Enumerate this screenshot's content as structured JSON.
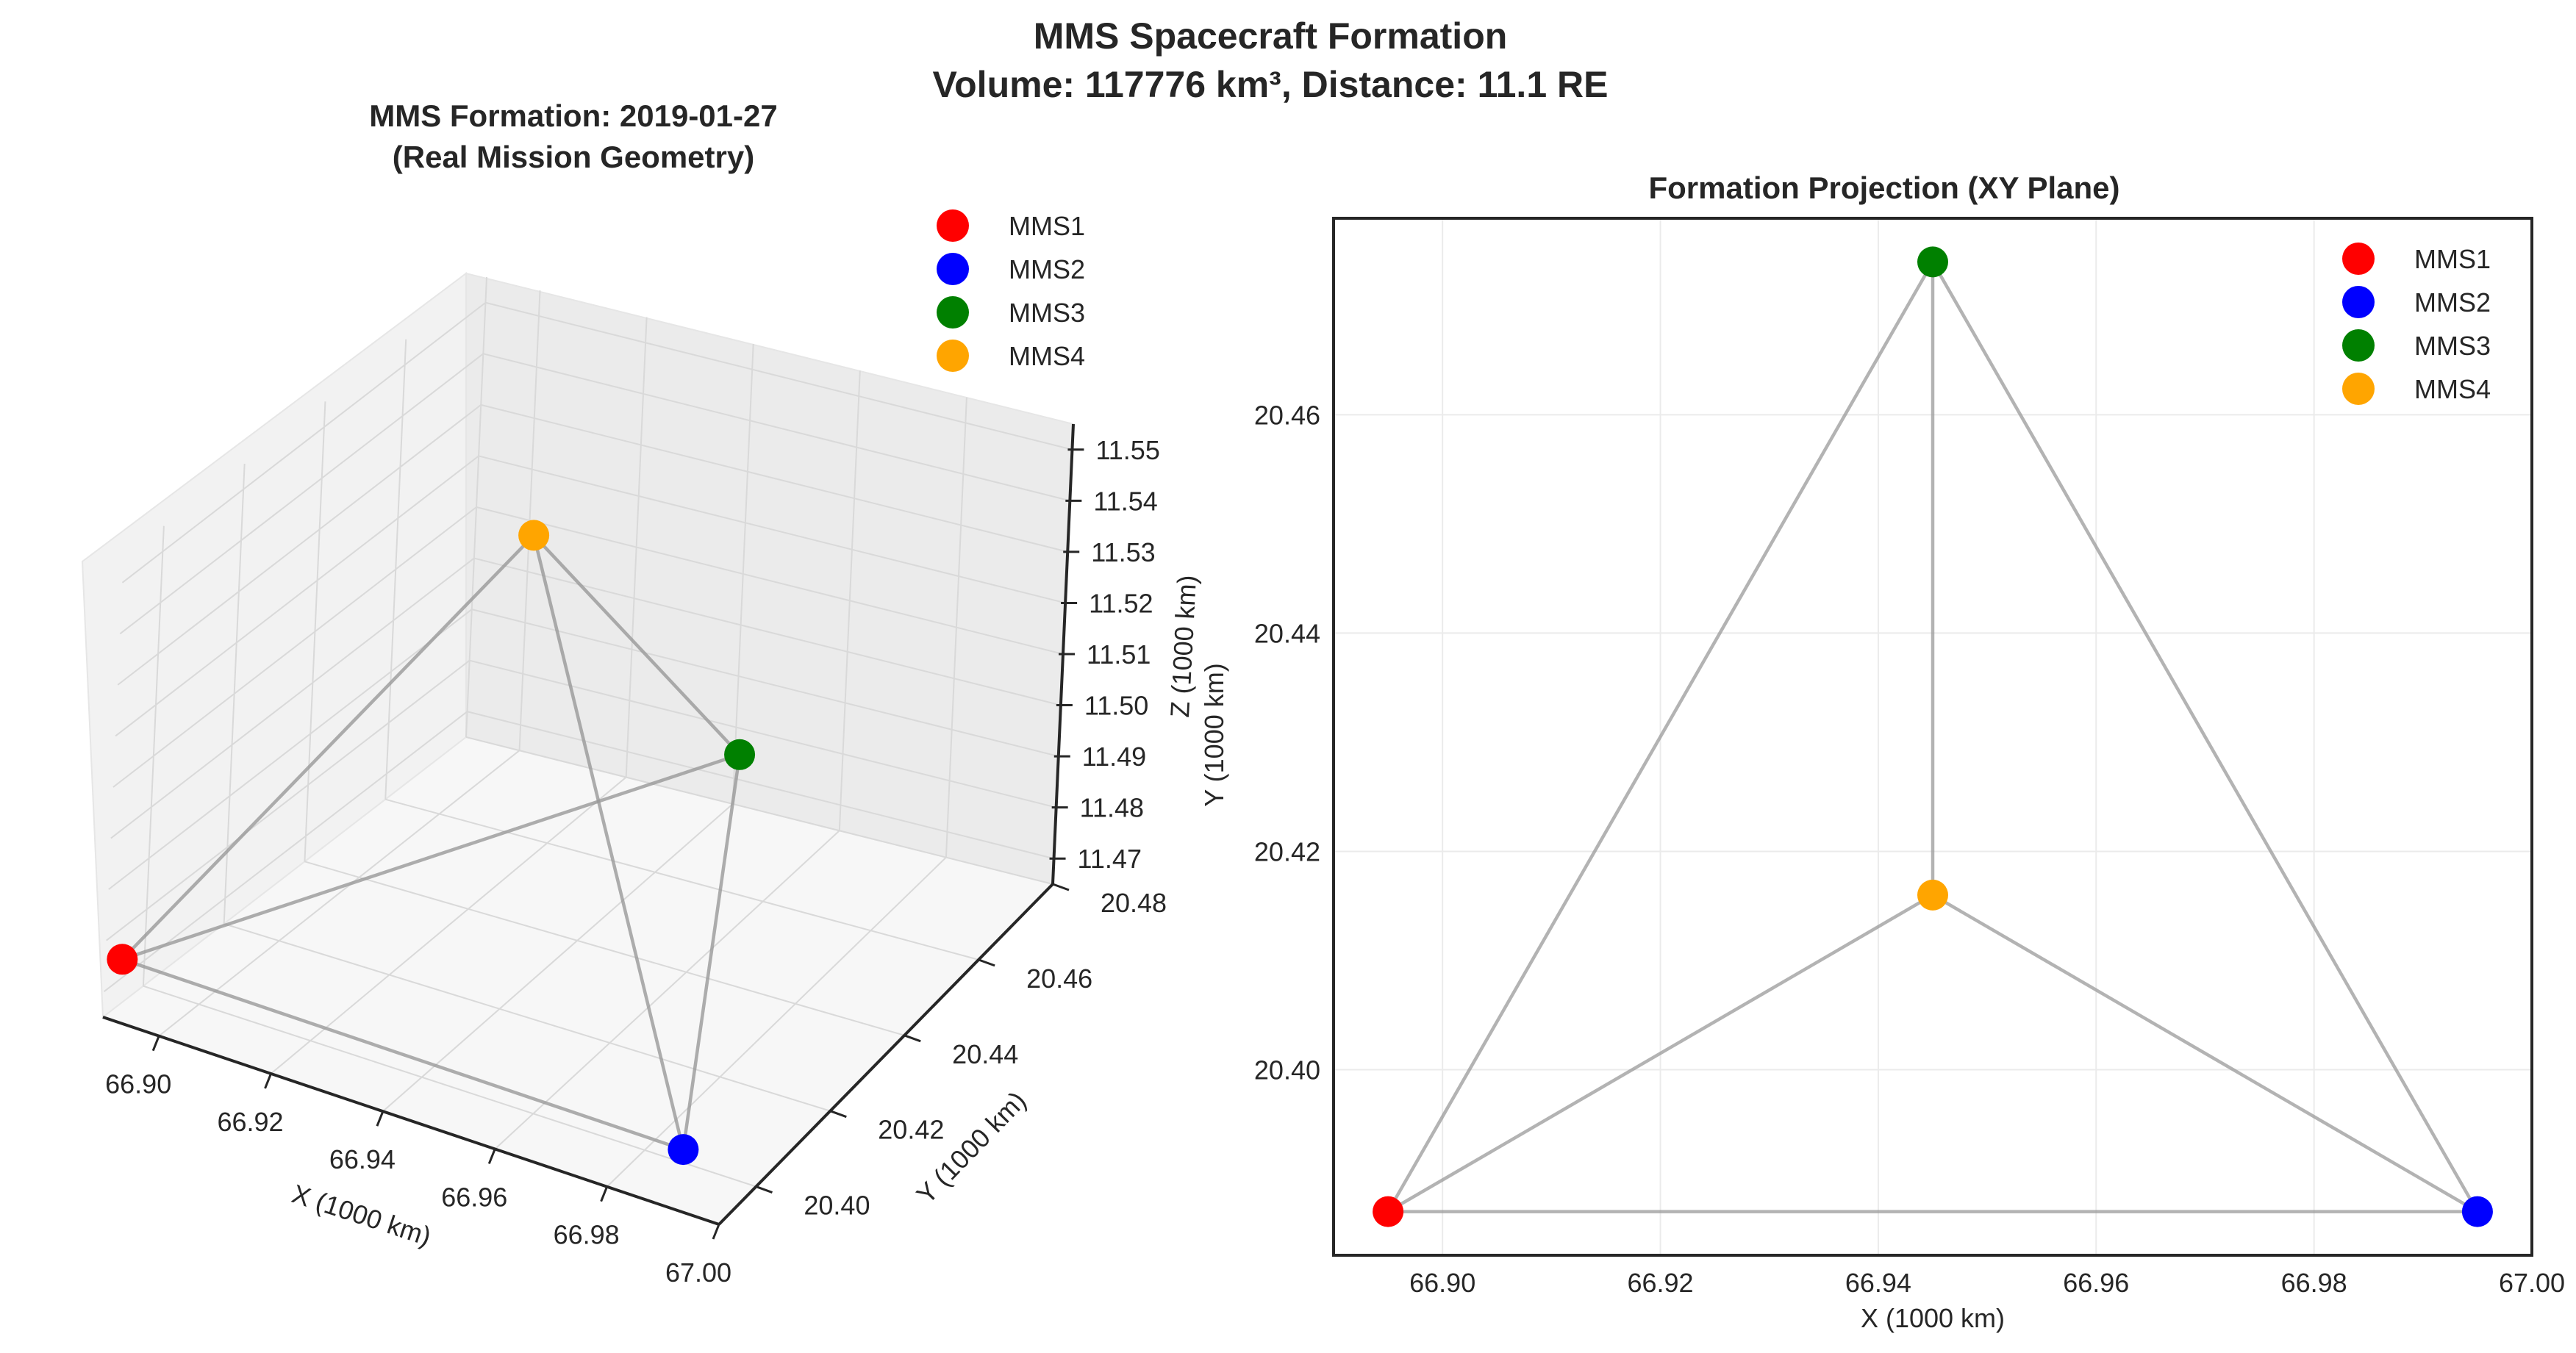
{
  "figure": {
    "title_line1": "MMS Spacecraft Formation",
    "title_line2": "Volume: 117776 km³, Distance: 11.1 RE"
  },
  "colors": {
    "MMS1": "#ff0000",
    "MMS2": "#0000ff",
    "MMS3": "#008000",
    "MMS4": "#ffa500",
    "edge": "#999999"
  },
  "chart_data": [
    {
      "type": "scatter",
      "projection": "3d",
      "title_line1": "MMS Formation: 2019-01-27",
      "title_line2": "(Real Mission Geometry)",
      "xlabel": "X (1000 km)",
      "ylabel": "Y (1000 km)",
      "zlabel": "Z (1000 km)",
      "xlim": [
        66.89,
        67.0
      ],
      "ylim": [
        20.39,
        20.48
      ],
      "zlim": [
        11.465,
        11.555
      ],
      "xticks": [
        "66.90",
        "66.92",
        "66.94",
        "66.96",
        "66.98",
        "67.00"
      ],
      "yticks": [
        "20.40",
        "20.42",
        "20.44",
        "20.46",
        "20.48"
      ],
      "zticks": [
        "11.47",
        "11.48",
        "11.49",
        "11.50",
        "11.51",
        "11.52",
        "11.53",
        "11.54",
        "11.55"
      ],
      "legend": "top-right",
      "series": [
        {
          "name": "MMS1",
          "x": 66.895,
          "y": 20.387,
          "z": 11.48
        },
        {
          "name": "MMS2",
          "x": 66.995,
          "y": 20.387,
          "z": 11.48
        },
        {
          "name": "MMS3",
          "x": 66.945,
          "y": 20.474,
          "z": 11.48
        },
        {
          "name": "MMS4",
          "x": 66.945,
          "y": 20.416,
          "z": 11.562
        }
      ]
    },
    {
      "type": "scatter",
      "title": "Formation Projection (XY Plane)",
      "xlabel": "X (1000 km)",
      "ylabel": "Y (1000 km)",
      "xlim": [
        66.89,
        67.0
      ],
      "ylim": [
        20.383,
        20.478
      ],
      "xticks": [
        "66.90",
        "66.92",
        "66.94",
        "66.96",
        "66.98",
        "67.00"
      ],
      "yticks": [
        "20.40",
        "20.42",
        "20.44",
        "20.46"
      ],
      "grid": true,
      "legend": "top-right",
      "series": [
        {
          "name": "MMS1",
          "x": 66.895,
          "y": 20.387
        },
        {
          "name": "MMS2",
          "x": 66.995,
          "y": 20.387
        },
        {
          "name": "MMS3",
          "x": 66.945,
          "y": 20.474
        },
        {
          "name": "MMS4",
          "x": 66.945,
          "y": 20.416
        }
      ]
    }
  ]
}
